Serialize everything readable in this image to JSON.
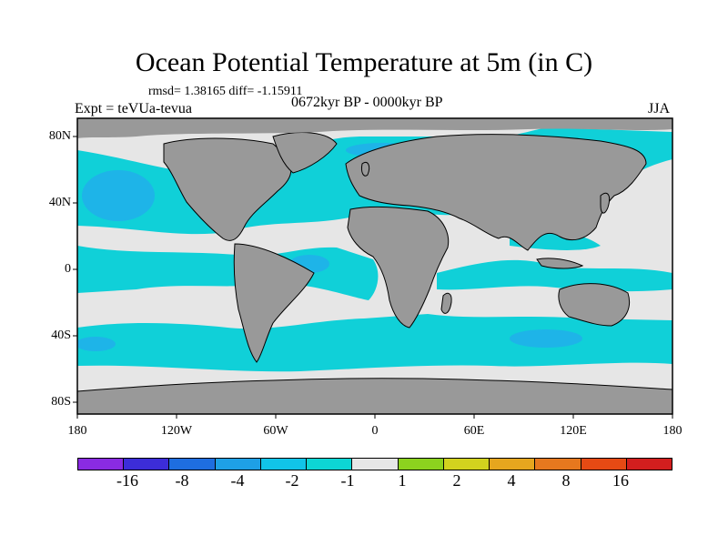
{
  "title": "Ocean Potential Temperature at 5m (in C)",
  "stats": "rmsd= 1.38165 diff= -1.15911",
  "experiment": "Expt = teVUa-tevua",
  "period": "0672kyr BP - 0000kyr BP",
  "season": "JJA",
  "lat_ticks": [
    "80N",
    "40N",
    "0",
    "40S",
    "80S"
  ],
  "lon_ticks": [
    "180",
    "120W",
    "60W",
    "0",
    "60E",
    "120E",
    "180"
  ],
  "colors": {
    "land": "#999999",
    "near_zero": "#e6e6e6",
    "cool": "#10d0d8",
    "cool2": "#1eb4e8",
    "cool3": "#1e8ce0",
    "cool4": "#1e4ce0"
  },
  "colorbar": {
    "swatches": [
      "#8a2be2",
      "#3c2dd8",
      "#1e6ee0",
      "#1ea0e6",
      "#11c4e8",
      "#0dd6d4",
      "#e6e6e6",
      "#8cd21e",
      "#d2d21e",
      "#e6a61e",
      "#e6781e",
      "#e64a14",
      "#d21e1e"
    ],
    "labels": [
      "-16",
      "-8",
      "-4",
      "-2",
      "-1",
      "1",
      "2",
      "4",
      "8",
      "16"
    ]
  }
}
